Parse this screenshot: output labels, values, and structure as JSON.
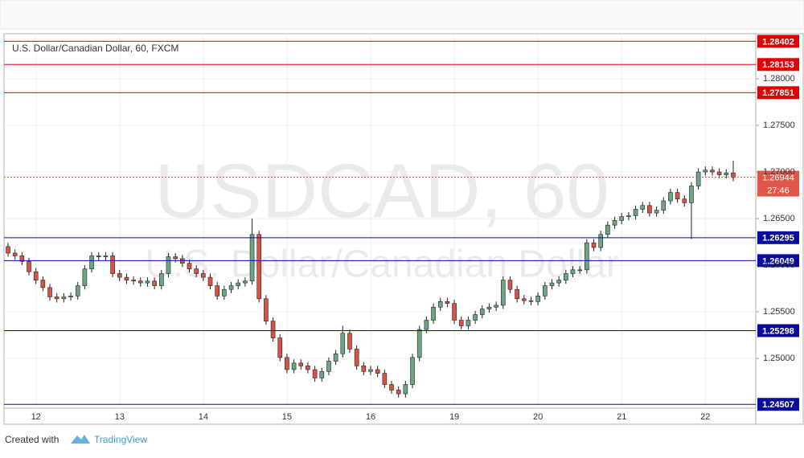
{
  "chart_data": {
    "type": "candlestick",
    "title": "U.S. Dollar/Canadian Dollar, 60, FXCM",
    "watermark": "USDCAD, 60",
    "watermark_subtitle": "U.S. Dollar/Canadian Dollar",
    "categories": [
      null,
      null,
      null,
      null,
      "12",
      null,
      null,
      null,
      null,
      null,
      null,
      null,
      null,
      null,
      null,
      null,
      "13",
      null,
      null,
      null,
      null,
      null,
      null,
      null,
      null,
      null,
      null,
      null,
      "14",
      null,
      null,
      null,
      null,
      null,
      null,
      null,
      null,
      null,
      null,
      null,
      "15",
      null,
      null,
      null,
      null,
      null,
      null,
      null,
      null,
      null,
      null,
      null,
      "16",
      null,
      null,
      null,
      null,
      null,
      null,
      null,
      null,
      null,
      null,
      null,
      "19",
      null,
      null,
      null,
      null,
      null,
      null,
      null,
      null,
      null,
      null,
      null,
      "20",
      null,
      null,
      null,
      null,
      null,
      null,
      null,
      null,
      null,
      null,
      null,
      "21",
      null,
      null,
      null,
      null,
      null,
      null,
      null,
      null,
      null,
      null,
      null,
      "22",
      null,
      null,
      null,
      null
    ],
    "open": [
      1.262,
      1.2613,
      1.261,
      1.2604,
      1.2593,
      1.2584,
      1.2576,
      1.2566,
      1.2564,
      1.2566,
      1.2567,
      1.2578,
      1.2596,
      1.261,
      1.2609,
      1.261,
      1.2591,
      1.2587,
      1.2584,
      1.2583,
      1.2581,
      1.2583,
      1.2578,
      1.2591,
      1.2609,
      1.2607,
      1.2602,
      1.2596,
      1.2591,
      1.2587,
      1.2578,
      1.2567,
      1.2574,
      1.2578,
      1.2581,
      1.2583,
      1.2633,
      1.2564,
      1.254,
      1.2522,
      1.2501,
      1.2488,
      1.2495,
      1.2492,
      1.2488,
      1.2479,
      1.2486,
      1.2497,
      1.2505,
      1.2527,
      1.251,
      1.2492,
      1.2486,
      1.2488,
      1.2484,
      1.2472,
      1.2466,
      1.2462,
      1.2472,
      1.2501,
      1.2531,
      1.2541,
      1.2555,
      1.2561,
      1.2559,
      1.2541,
      1.2535,
      1.2541,
      1.2547,
      1.2553,
      1.2555,
      1.2557,
      1.2584,
      1.2574,
      1.2564,
      1.2562,
      1.2561,
      1.2567,
      1.2578,
      1.2581,
      1.2584,
      1.2591,
      1.2595,
      1.2595,
      1.2624,
      1.2619,
      1.2633,
      1.2643,
      1.2648,
      1.2652,
      1.2653,
      1.266,
      1.2664,
      1.2656,
      1.2659,
      1.2669,
      1.2678,
      1.2671,
      1.2667,
      1.2685,
      1.27,
      1.2702,
      1.27,
      1.2697,
      1.2699
    ],
    "high": [
      1.2624,
      1.2617,
      1.2614,
      1.2608,
      1.2597,
      1.2588,
      1.258,
      1.257,
      1.257,
      1.2571,
      1.2582,
      1.26,
      1.2614,
      1.2614,
      1.2614,
      1.2614,
      1.2595,
      1.2591,
      1.2588,
      1.2587,
      1.2587,
      1.2587,
      1.2595,
      1.2613,
      1.2613,
      1.2611,
      1.2606,
      1.26,
      1.2595,
      1.2591,
      1.2582,
      1.2578,
      1.2582,
      1.2585,
      1.2587,
      1.265,
      1.2637,
      1.2568,
      1.2544,
      1.2526,
      1.2505,
      1.2499,
      1.2499,
      1.2496,
      1.2492,
      1.249,
      1.2501,
      1.2509,
      1.2535,
      1.2531,
      1.2514,
      1.2496,
      1.2492,
      1.2492,
      1.2488,
      1.2476,
      1.247,
      1.2476,
      1.2505,
      1.2535,
      1.2545,
      1.2559,
      1.2565,
      1.2565,
      1.2563,
      1.2545,
      1.2545,
      1.2551,
      1.2557,
      1.2559,
      1.2561,
      1.2588,
      1.2588,
      1.2578,
      1.2568,
      1.2566,
      1.2571,
      1.2582,
      1.2585,
      1.2588,
      1.2595,
      1.2599,
      1.2599,
      1.2628,
      1.2628,
      1.2637,
      1.2647,
      1.2652,
      1.2656,
      1.2657,
      1.2664,
      1.2668,
      1.2668,
      1.2663,
      1.2673,
      1.2682,
      1.2682,
      1.2675,
      1.2689,
      1.2704,
      1.2706,
      1.2706,
      1.2704,
      1.2703,
      1.2712
    ],
    "low": [
      1.2609,
      1.2606,
      1.26,
      1.2589,
      1.258,
      1.2572,
      1.2562,
      1.256,
      1.256,
      1.2562,
      1.2563,
      1.2574,
      1.2592,
      1.2605,
      1.2605,
      1.2587,
      1.2583,
      1.258,
      1.2579,
      1.2577,
      1.2577,
      1.2574,
      1.2574,
      1.2587,
      1.2603,
      1.2598,
      1.2592,
      1.2587,
      1.2583,
      1.2574,
      1.2563,
      1.2563,
      1.257,
      1.2574,
      1.2577,
      1.2579,
      1.256,
      1.2536,
      1.2518,
      1.2497,
      1.2484,
      1.2484,
      1.2488,
      1.2484,
      1.2475,
      1.2475,
      1.2482,
      1.2493,
      1.2501,
      1.2506,
      1.2488,
      1.2482,
      1.2482,
      1.248,
      1.2468,
      1.2462,
      1.2458,
      1.2458,
      1.2468,
      1.2497,
      1.2527,
      1.2537,
      1.2551,
      1.2555,
      1.2537,
      1.2531,
      1.2531,
      1.2537,
      1.2543,
      1.2549,
      1.2551,
      1.2553,
      1.257,
      1.256,
      1.2558,
      1.2557,
      1.2557,
      1.2563,
      1.2574,
      1.2577,
      1.258,
      1.2587,
      1.2591,
      1.2591,
      1.2615,
      1.2615,
      1.2629,
      1.2639,
      1.2644,
      1.2648,
      1.2649,
      1.2656,
      1.2652,
      1.2652,
      1.2655,
      1.2665,
      1.2667,
      1.2663,
      1.2628,
      1.2681,
      1.2696,
      1.2696,
      1.2693,
      1.2693,
      1.269
    ],
    "close": [
      1.2613,
      1.261,
      1.2604,
      1.2593,
      1.2584,
      1.2576,
      1.2566,
      1.2564,
      1.2566,
      1.2567,
      1.2578,
      1.2596,
      1.261,
      1.2609,
      1.261,
      1.2591,
      1.2587,
      1.2584,
      1.2583,
      1.2581,
      1.2583,
      1.2578,
      1.2591,
      1.2609,
      1.2607,
      1.2602,
      1.2596,
      1.2591,
      1.2587,
      1.2578,
      1.2567,
      1.2574,
      1.2578,
      1.2581,
      1.2583,
      1.2633,
      1.2564,
      1.254,
      1.2522,
      1.2501,
      1.2488,
      1.2495,
      1.2492,
      1.2488,
      1.2479,
      1.2486,
      1.2497,
      1.2505,
      1.2527,
      1.251,
      1.2492,
      1.2486,
      1.2488,
      1.2484,
      1.2472,
      1.2466,
      1.2462,
      1.2472,
      1.2501,
      1.2531,
      1.2541,
      1.2555,
      1.2561,
      1.2559,
      1.2541,
      1.2535,
      1.2541,
      1.2547,
      1.2553,
      1.2555,
      1.2557,
      1.2584,
      1.2574,
      1.2564,
      1.2562,
      1.2561,
      1.2567,
      1.2578,
      1.2581,
      1.2584,
      1.2591,
      1.2595,
      1.2595,
      1.2624,
      1.2619,
      1.2633,
      1.2643,
      1.2648,
      1.2652,
      1.2653,
      1.266,
      1.2664,
      1.2656,
      1.2659,
      1.2669,
      1.2678,
      1.2671,
      1.2667,
      1.2685,
      1.27,
      1.2702,
      1.27,
      1.2697,
      1.2699,
      1.2694
    ],
    "up_color": "#6ba583",
    "down_color": "#d75442",
    "ylim": [
      1.24466,
      1.28483
    ],
    "yticks": [
      {
        "value": 1.28,
        "label": "1.28000"
      },
      {
        "value": 1.275,
        "label": "1.27500"
      },
      {
        "value": 1.27,
        "label": "1.27000"
      },
      {
        "value": 1.265,
        "label": "1.26500"
      },
      {
        "value": 1.26,
        "label": "1.26000"
      },
      {
        "value": 1.255,
        "label": "1.25500"
      },
      {
        "value": 1.25,
        "label": "1.25000"
      }
    ],
    "levels": [
      {
        "value": 1.28402,
        "color": "#e00000"
      },
      {
        "value": 1.28153,
        "color": "#e00000"
      },
      {
        "value": 1.27851,
        "color": "#e00000"
      },
      {
        "value": 1.26295,
        "color": "#0a0a9c"
      },
      {
        "value": 1.26049,
        "color": "#0a0a9c"
      },
      {
        "value": 1.25298,
        "color": "#0a0a9c"
      },
      {
        "value": 1.24507,
        "color": "#0a0a9c"
      }
    ],
    "last_price": 1.26944,
    "last_price_color": "#e0574a",
    "countdown": "27:46"
  },
  "footer": {
    "created_with": "Created with",
    "brand": "TradingView"
  }
}
